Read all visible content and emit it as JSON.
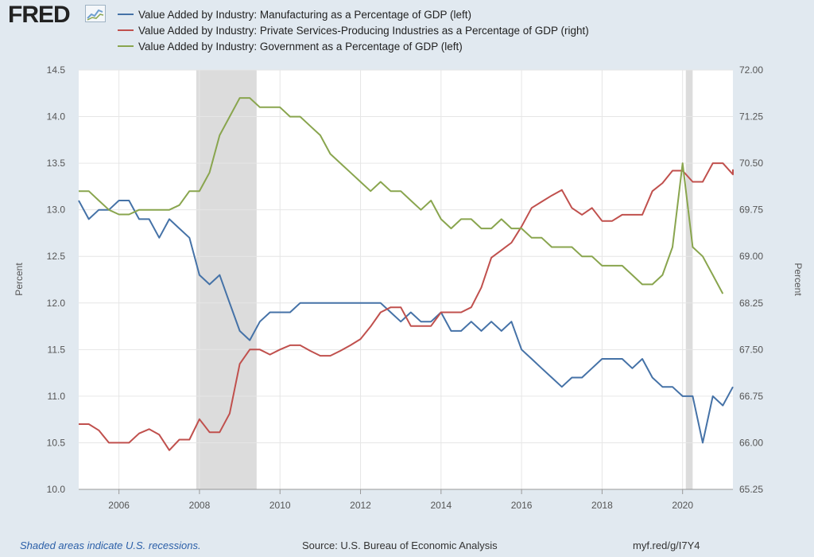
{
  "header": {
    "logo_text": "FRED",
    "logo_icon": "line-chart-icon"
  },
  "footer": {
    "recessions_note": "Shaded areas indicate U.S. recessions.",
    "source": "Source: U.S. Bureau of Economic Analysis",
    "short_url": "myf.red/g/I7Y4"
  },
  "colors": {
    "manufacturing": "#4572a7",
    "services": "#c0504d",
    "government": "#89a54e",
    "recession": "#dcdcdc",
    "background": "#e1e9f0",
    "plot": "#ffffff"
  },
  "chart_data": {
    "type": "line",
    "grid": true,
    "legend_position": "top",
    "x_range": [
      2005.0,
      2021.25
    ],
    "x_ticks": [
      "2006",
      "2008",
      "2010",
      "2012",
      "2014",
      "2016",
      "2018",
      "2020"
    ],
    "left_axis": {
      "label": "Percent",
      "range": [
        10.0,
        14.5
      ],
      "ticks": [
        "10.0",
        "10.5",
        "11.0",
        "11.5",
        "12.0",
        "12.5",
        "13.0",
        "13.5",
        "14.0",
        "14.5"
      ]
    },
    "right_axis": {
      "label": "Percent",
      "range": [
        65.25,
        72.0
      ],
      "ticks": [
        "65.25",
        "66.00",
        "66.75",
        "67.50",
        "68.25",
        "69.00",
        "69.75",
        "70.50",
        "71.25",
        "72.00"
      ]
    },
    "recessions": [
      [
        2007.92,
        2009.42
      ],
      [
        2020.08,
        2020.25
      ]
    ],
    "series": [
      {
        "name": "Value Added by Industry: Manufacturing as a Percentage of GDP (left)",
        "axis": "left",
        "color": "#4572a7",
        "values": [
          13.1,
          12.9,
          13.0,
          13.0,
          13.1,
          13.1,
          12.9,
          12.9,
          12.7,
          12.9,
          12.8,
          12.7,
          12.3,
          12.2,
          12.3,
          12.0,
          11.7,
          11.6,
          11.8,
          11.9,
          11.9,
          11.9,
          12.0,
          12.0,
          12.0,
          12.0,
          12.0,
          12.0,
          12.0,
          12.0,
          12.0,
          11.9,
          11.8,
          11.9,
          11.8,
          11.8,
          11.9,
          11.7,
          11.7,
          11.8,
          11.7,
          11.8,
          11.7,
          11.8,
          11.5,
          11.4,
          11.3,
          11.2,
          11.1,
          11.2,
          11.2,
          11.3,
          11.4,
          11.4,
          11.4,
          11.3,
          11.4,
          11.2,
          11.1,
          11.1,
          11.0,
          11.0,
          10.5,
          11.0,
          10.9,
          11.1,
          11.1
        ]
      },
      {
        "name": "Value Added by Industry: Private Services-Producing Industries as a Percentage of GDP (right)",
        "axis": "right",
        "color": "#c0504d",
        "values": [
          66.3,
          66.3,
          66.2,
          66.0,
          66.0,
          66.0,
          66.15,
          66.22,
          66.13,
          65.88,
          66.05,
          66.05,
          66.38,
          66.17,
          66.17,
          66.47,
          67.27,
          67.5,
          67.5,
          67.42,
          67.5,
          67.57,
          67.57,
          67.48,
          67.4,
          67.4,
          67.48,
          67.57,
          67.67,
          67.87,
          68.1,
          68.18,
          68.18,
          67.88,
          67.88,
          67.88,
          68.1,
          68.1,
          68.1,
          68.18,
          68.5,
          68.98,
          69.1,
          69.22,
          69.48,
          69.78,
          69.88,
          69.98,
          70.07,
          69.78,
          69.67,
          69.78,
          69.57,
          69.57,
          69.67,
          69.67,
          69.67,
          70.05,
          70.18,
          70.38,
          70.38,
          70.2,
          70.2,
          70.5,
          70.5,
          70.32,
          70.4
        ]
      },
      {
        "name": "Value Added by Industry: Government as a Percentage of GDP (left)",
        "axis": "left",
        "color": "#89a54e",
        "values": [
          13.2,
          13.2,
          13.1,
          13.0,
          12.95,
          12.95,
          13.0,
          13.0,
          13.0,
          13.0,
          13.05,
          13.2,
          13.2,
          13.4,
          13.8,
          14.0,
          14.2,
          14.2,
          14.1,
          14.1,
          14.1,
          14.0,
          14.0,
          13.9,
          13.8,
          13.6,
          13.5,
          13.4,
          13.3,
          13.2,
          13.3,
          13.2,
          13.2,
          13.1,
          13.0,
          13.1,
          12.9,
          12.8,
          12.9,
          12.9,
          12.8,
          12.8,
          12.9,
          12.8,
          12.8,
          12.7,
          12.7,
          12.6,
          12.6,
          12.6,
          12.5,
          12.5,
          12.4,
          12.4,
          12.4,
          12.3,
          12.2,
          12.2,
          12.3,
          12.6,
          13.5,
          12.6,
          12.5,
          12.3,
          12.1
        ]
      }
    ]
  }
}
